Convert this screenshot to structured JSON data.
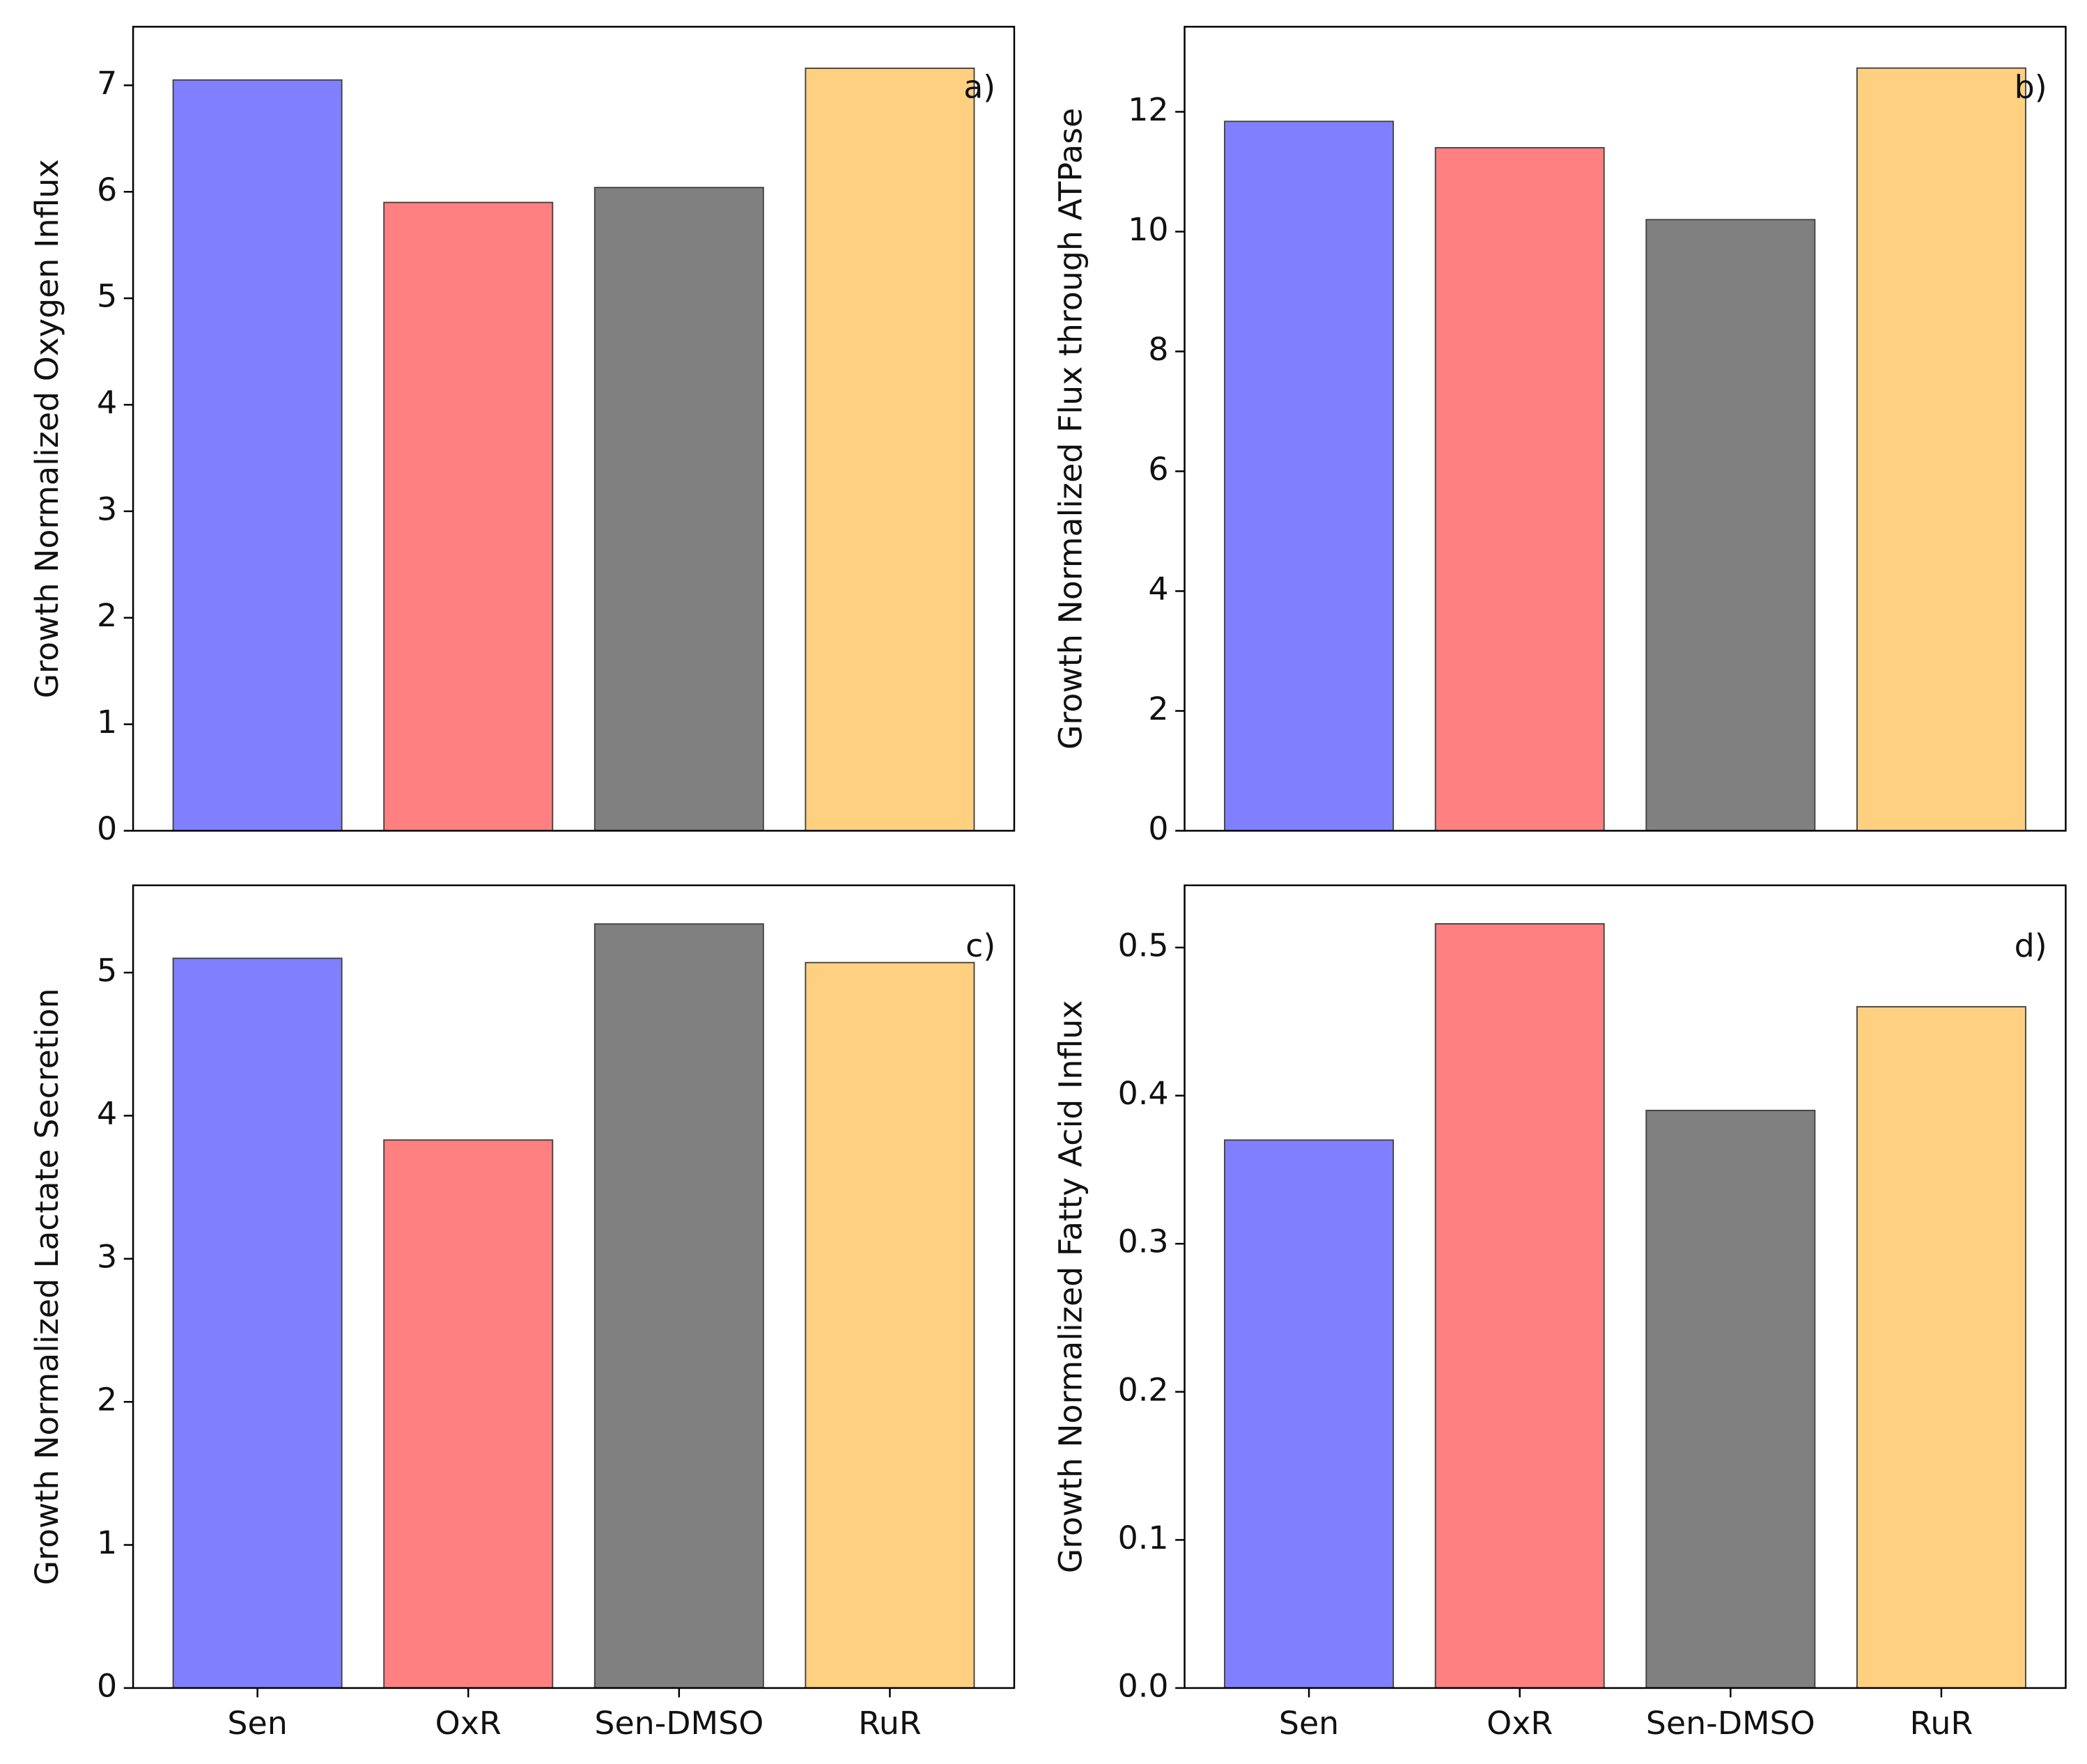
{
  "chart_data": [
    {
      "type": "bar",
      "ylabel": "Growth Normalized Oxygen Influx",
      "annotation": "a)",
      "categories": [
        null,
        null,
        null,
        null
      ],
      "values": [
        7.05,
        5.9,
        6.04,
        7.16
      ],
      "colors": [
        "#8080ff",
        "#ff8080",
        "#808080",
        "#ffd080"
      ],
      "ylim": [
        0,
        7.55
      ],
      "yticks": [
        0,
        1,
        2,
        3,
        4,
        5,
        6,
        7
      ]
    },
    {
      "type": "bar",
      "ylabel": "Growth Normalized Flux through ATPase",
      "annotation": "b)",
      "categories": [
        null,
        null,
        null,
        null
      ],
      "values": [
        11.84,
        11.4,
        10.2,
        12.73
      ],
      "colors": [
        "#8080ff",
        "#ff8080",
        "#808080",
        "#ffd080"
      ],
      "ylim": [
        0,
        13.42
      ],
      "yticks": [
        0,
        2,
        4,
        6,
        8,
        10,
        12
      ]
    },
    {
      "type": "bar",
      "ylabel": "Growth Normalized Lactate Secretion",
      "annotation": "c)",
      "categories": [
        "Sen",
        "OxR",
        "Sen-DMSO",
        "RuR"
      ],
      "values": [
        5.1,
        3.83,
        5.34,
        5.07
      ],
      "colors": [
        "#8080ff",
        "#ff8080",
        "#808080",
        "#ffd080"
      ],
      "ylim": [
        0,
        5.61
      ],
      "yticks": [
        0,
        1,
        2,
        3,
        4,
        5
      ]
    },
    {
      "type": "bar",
      "ylabel": "Growth Normalized Fatty Acid Influx",
      "annotation": "d)",
      "categories": [
        "Sen",
        "OxR",
        "Sen-DMSO",
        "RuR"
      ],
      "values": [
        0.37,
        0.516,
        0.39,
        0.46
      ],
      "colors": [
        "#8080ff",
        "#ff8080",
        "#808080",
        "#ffd080"
      ],
      "ylim": [
        0,
        0.542
      ],
      "yticks": [
        {
          "value": 0,
          "label": "0.0"
        },
        0.1,
        0.2,
        0.3,
        0.4,
        0.5
      ]
    }
  ]
}
